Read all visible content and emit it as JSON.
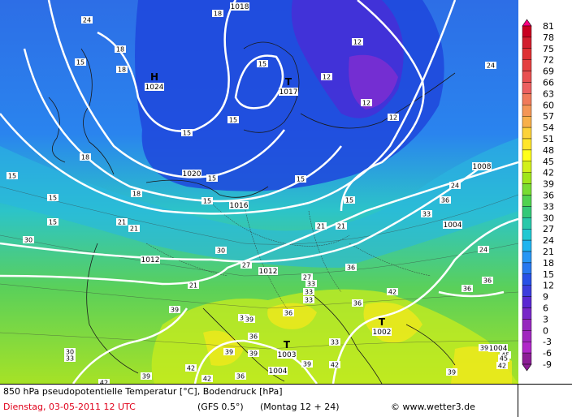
{
  "caption": {
    "line1": "850 hPa pseudopotentielle Temperatur [°C], Bodendruck [hPa]",
    "date": "Dienstag, 03-05-2011  12 UTC",
    "model": "(GFS 0.5°)",
    "run": "(Montag 12 + 24)",
    "credit": "© www.wetter3.de"
  },
  "legend": {
    "values": [
      "81",
      "78",
      "75",
      "72",
      "69",
      "66",
      "63",
      "60",
      "57",
      "54",
      "51",
      "48",
      "45",
      "42",
      "39",
      "36",
      "33",
      "30",
      "27",
      "24",
      "21",
      "18",
      "15",
      "12",
      "9",
      "6",
      "3",
      "0",
      "-3",
      "-6",
      "-9"
    ],
    "colors": [
      "#ff0080",
      "#c80020",
      "#d21e2d",
      "#de3032",
      "#e44040",
      "#e85050",
      "#ec6060",
      "#f07a5a",
      "#f49656",
      "#f8b04a",
      "#fcd23a",
      "#ffe62a",
      "#ffff1a",
      "#d2f01a",
      "#a0e61a",
      "#78dc32",
      "#50d250",
      "#34c878",
      "#28c8aa",
      "#20c8d2",
      "#20b4f0",
      "#2896f5",
      "#2878f0",
      "#2850e6",
      "#3c3cdc",
      "#5a28d2",
      "#7828c8",
      "#9628be",
      "#a028be",
      "#b028c8",
      "#8c1e96"
    ]
  },
  "pressure_centers": [
    {
      "kind": "H",
      "value": "1024"
    },
    {
      "kind": "T",
      "value": "1017"
    },
    {
      "kind": "T",
      "value": "1002"
    },
    {
      "kind": "T",
      "value": "1003"
    }
  ],
  "isobar_labels": [
    "1018",
    "1020",
    "1016",
    "1012",
    "1012",
    "1008",
    "1004",
    "1004",
    "1004"
  ],
  "temperature_labels": [
    "24",
    "18",
    "18",
    "15",
    "18",
    "15",
    "12",
    "12",
    "24",
    "15",
    "12",
    "15",
    "12",
    "18",
    "15",
    "15",
    "18",
    "15",
    "21",
    "15",
    "15",
    "15",
    "15",
    "21",
    "30",
    "21",
    "24",
    "21",
    "30",
    "36",
    "33",
    "36",
    "24",
    "27",
    "21",
    "27",
    "33",
    "33",
    "36",
    "30",
    "33",
    "36",
    "36",
    "39",
    "42",
    "39",
    "36",
    "39",
    "42",
    "39",
    "39",
    "33",
    "30",
    "33",
    "42",
    "39",
    "42",
    "39",
    "45",
    "42",
    "36",
    "39",
    "42",
    "36",
    "45"
  ]
}
